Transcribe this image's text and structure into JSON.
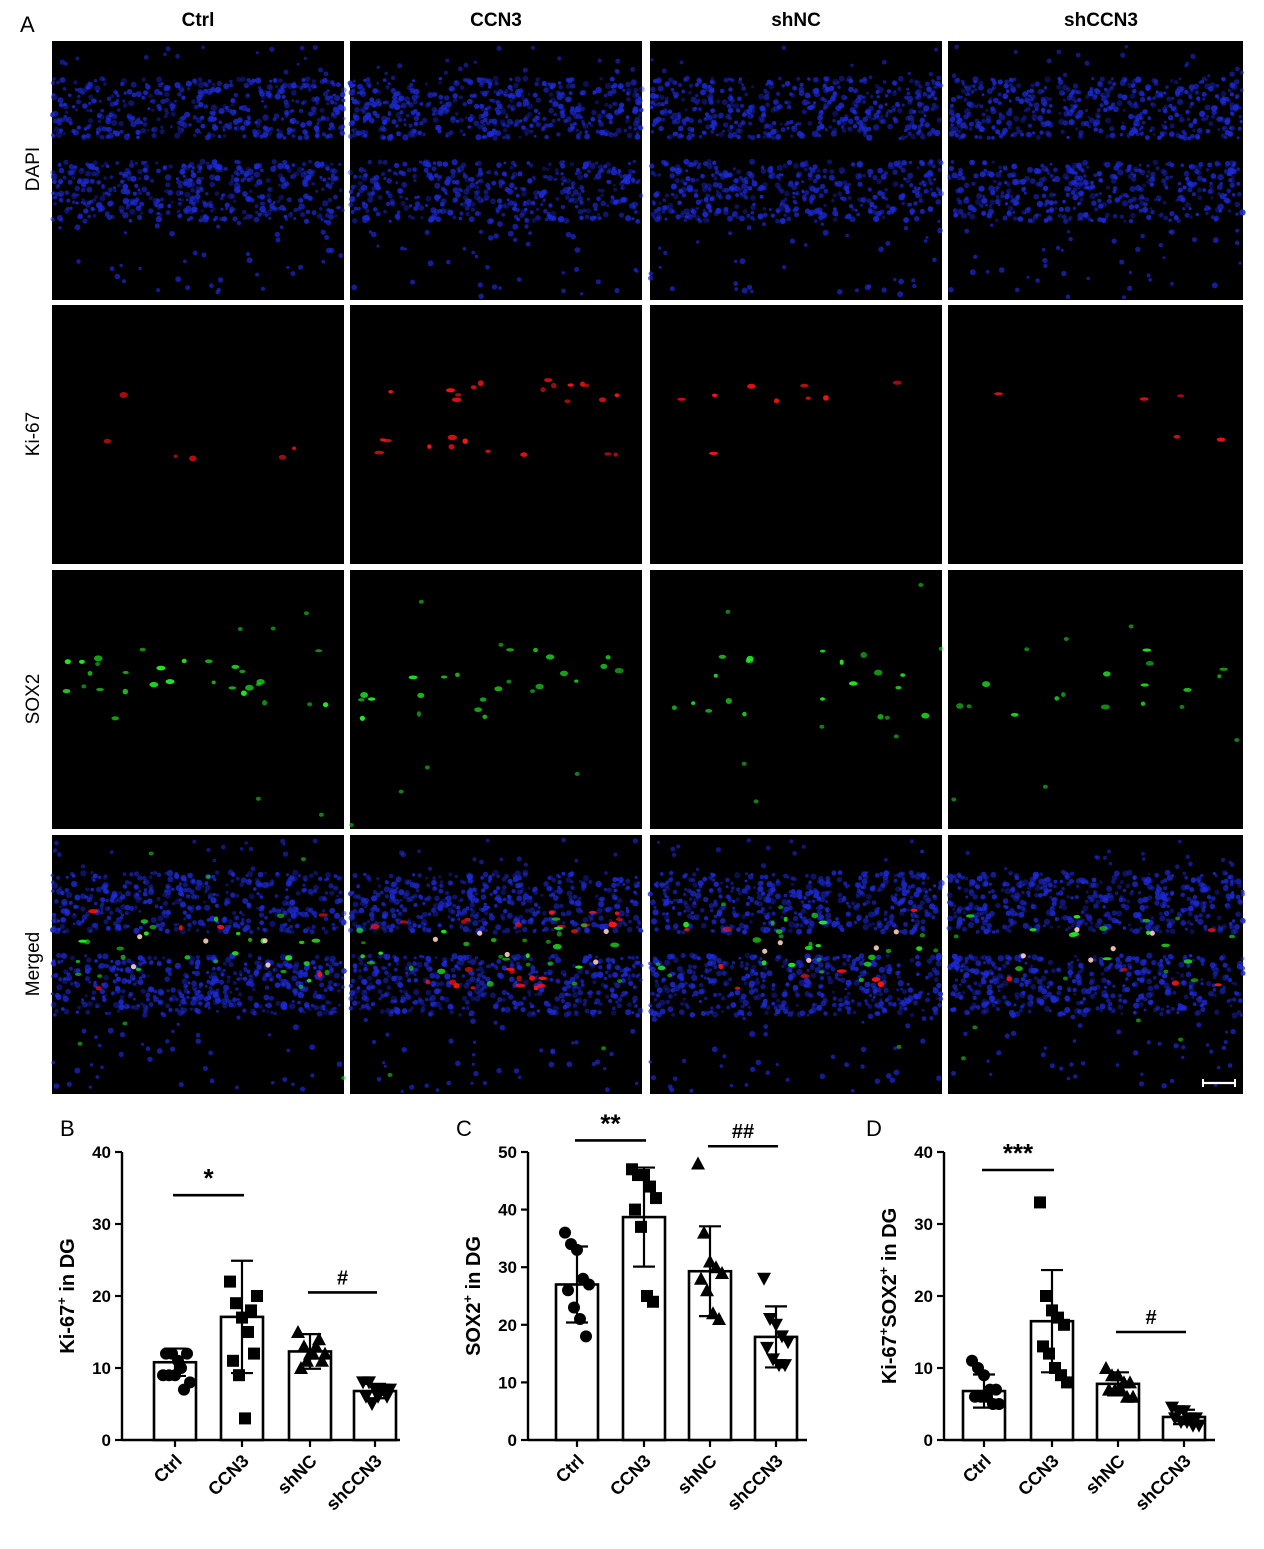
{
  "panel_letters": {
    "a": "A",
    "b": "B",
    "c": "C",
    "d": "D"
  },
  "column_headers": [
    "Ctrl",
    "CCN3",
    "shNC",
    "shCCN3"
  ],
  "row_labels": [
    "DAPI",
    "Ki-67",
    "SOX2",
    "Merged"
  ],
  "colors": {
    "dapi": "#1c2ad6",
    "ki67": "#ff1414",
    "sox2": "#22e822",
    "merged_coloc": "#ffd0c0",
    "background": "#000000"
  },
  "chart_data": [
    {
      "type": "bar",
      "panel": "B",
      "categories": [
        "Ctrl",
        "CCN3",
        "shNC",
        "shCCN3"
      ],
      "values": [
        10.8,
        17.1,
        12.3,
        6.8
      ],
      "errors": [
        1.9,
        7.8,
        2.4,
        1.0
      ],
      "points": [
        [
          9,
          9,
          9,
          10,
          12,
          12,
          12,
          11,
          7,
          8
        ],
        [
          22,
          19,
          17,
          15,
          12,
          11,
          9,
          3,
          18,
          20
        ],
        [
          15,
          13,
          12,
          13,
          11,
          10,
          11,
          12,
          14,
          12
        ],
        [
          8,
          8,
          7,
          7,
          6,
          6,
          5,
          6,
          7,
          7
        ]
      ],
      "markers": [
        "circle",
        "square",
        "triangle",
        "triangle-down"
      ],
      "ylabel_main": "Ki-67",
      "ylabel_sup": "+",
      "ylabel_tail": " in DG",
      "ylim": [
        0,
        40
      ],
      "yticks": [
        0,
        10,
        20,
        30,
        40
      ],
      "significance": [
        {
          "from": 0,
          "to": 1,
          "y": 34,
          "label": "*"
        },
        {
          "from": 2,
          "to": 3,
          "y": 20.5,
          "label": "#"
        }
      ]
    },
    {
      "type": "bar",
      "panel": "C",
      "categories": [
        "Ctrl",
        "CCN3",
        "shNC",
        "shCCN3"
      ],
      "values": [
        27.0,
        38.7,
        29.3,
        17.9
      ],
      "errors": [
        6.6,
        8.6,
        7.8,
        5.3
      ],
      "points": [
        [
          36,
          34,
          33,
          28,
          27,
          26,
          23,
          21,
          18
        ],
        [
          47,
          46,
          46,
          44,
          42,
          40,
          37,
          25,
          24
        ],
        [
          48,
          36,
          31,
          30,
          29,
          28,
          26,
          22,
          21
        ],
        [
          28,
          21,
          20,
          18,
          17,
          16,
          14,
          13,
          13
        ]
      ],
      "markers": [
        "circle",
        "square",
        "triangle",
        "triangle-down"
      ],
      "ylabel_main": "SOX2",
      "ylabel_sup": "+",
      "ylabel_tail": " in DG",
      "ylim": [
        0,
        50
      ],
      "yticks": [
        0,
        10,
        20,
        30,
        40,
        50
      ],
      "significance": [
        {
          "from": 0,
          "to": 1,
          "y": 52,
          "label": "**"
        },
        {
          "from": 2,
          "to": 3,
          "y": 51,
          "label": "##"
        }
      ]
    },
    {
      "type": "bar",
      "panel": "D",
      "categories": [
        "Ctrl",
        "CCN3",
        "shNC",
        "shCCN3"
      ],
      "values": [
        6.8,
        16.5,
        7.8,
        3.2
      ],
      "errors": [
        2.3,
        7.1,
        1.6,
        1.0
      ],
      "points": [
        [
          11,
          10,
          9,
          7,
          7,
          6,
          6,
          6,
          5,
          5
        ],
        [
          33,
          20,
          18,
          17,
          16,
          13,
          12,
          10,
          9,
          8
        ],
        [
          10,
          9,
          9,
          8,
          8,
          7,
          7,
          7,
          6,
          6
        ],
        [
          4.5,
          4,
          4,
          3,
          3,
          3,
          2.5,
          2.5,
          2,
          2
        ]
      ],
      "markers": [
        "circle",
        "square",
        "triangle",
        "triangle-down"
      ],
      "ylabel_main": "Ki-67",
      "ylabel_sup": "+",
      "ylabel_mid": "SOX2",
      "ylabel_sup2": "+",
      "ylabel_tail": " in DG",
      "ylim": [
        0,
        40
      ],
      "yticks": [
        0,
        10,
        20,
        30,
        40
      ],
      "significance": [
        {
          "from": 0,
          "to": 1,
          "y": 37.5,
          "label": "***"
        },
        {
          "from": 2,
          "to": 3,
          "y": 15,
          "label": "#"
        }
      ]
    }
  ]
}
